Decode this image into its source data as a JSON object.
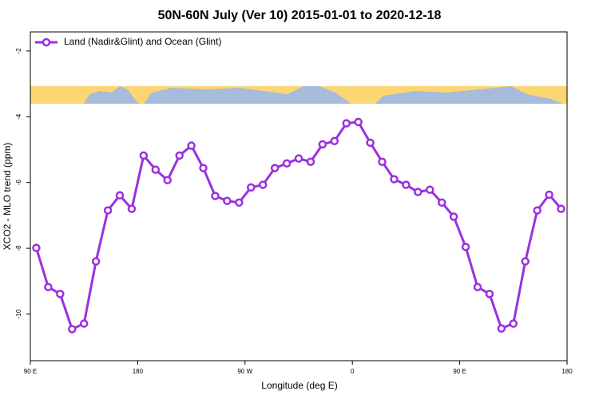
{
  "chart_data": {
    "type": "line",
    "title": "50N-60N July (Ver 10)   2015-01-01 to 2020-12-18",
    "x_label": "Longitude (deg E)",
    "y_label": "XCO2 - MLO trend (ppm)",
    "x": [
      95,
      105,
      115,
      125,
      135,
      145,
      155,
      165,
      175,
      185,
      195,
      205,
      215,
      225,
      235,
      245,
      255,
      265,
      275,
      285,
      295,
      305,
      315,
      325,
      335,
      345,
      355,
      365,
      375,
      385,
      395,
      405,
      415,
      425,
      435,
      445,
      455,
      465,
      475,
      485,
      495,
      505,
      515,
      525,
      535
    ],
    "series": [
      {
        "name": "Land (Nadir&Glint) and Ocean (Glint)",
        "color": "#9b30e0",
        "values": [
          -7.99,
          -9.18,
          -9.39,
          -10.46,
          -10.29,
          -8.4,
          -6.85,
          -6.39,
          -6.8,
          -5.18,
          -5.61,
          -5.93,
          -5.18,
          -4.88,
          -5.56,
          -6.41,
          -6.56,
          -6.61,
          -6.15,
          -6.07,
          -5.56,
          -5.42,
          -5.27,
          -5.37,
          -4.84,
          -4.74,
          -4.2,
          -4.16,
          -4.79,
          -5.37,
          -5.9,
          -6.07,
          -6.29,
          -6.22,
          -6.61,
          -7.04,
          -7.96,
          -9.18,
          -9.39,
          -10.44,
          -10.29,
          -8.4,
          -6.85,
          -6.37,
          -6.8
        ]
      }
    ],
    "xlim": [
      90,
      540
    ],
    "xticks": [
      {
        "value": 90,
        "label": "90 E"
      },
      180,
      {
        "value": 270,
        "label": "90 W"
      },
      {
        "value": 360,
        "label": "0"
      },
      {
        "value": 450,
        "label": "90 E"
      },
      {
        "value": 540,
        "label": "180"
      }
    ],
    "ylim": [
      -11.42,
      -1.42
    ],
    "yticks": [
      -2,
      -4,
      -6,
      -8,
      -10
    ],
    "legend": "top-left"
  }
}
